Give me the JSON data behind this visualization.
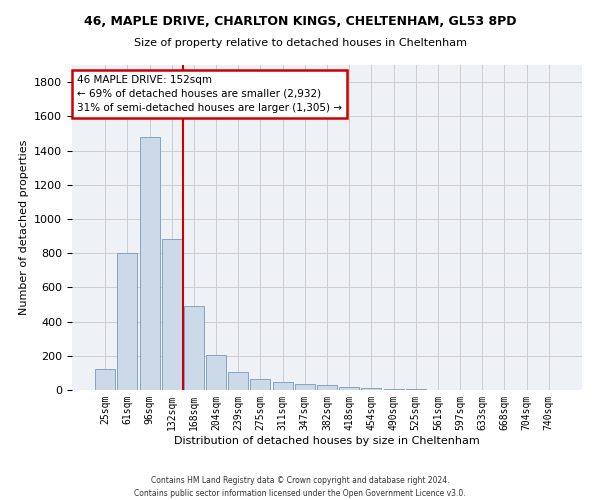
{
  "title_line1": "46, MAPLE DRIVE, CHARLTON KINGS, CHELTENHAM, GL53 8PD",
  "title_line2": "Size of property relative to detached houses in Cheltenham",
  "xlabel": "Distribution of detached houses by size in Cheltenham",
  "ylabel": "Number of detached properties",
  "footnote": "Contains HM Land Registry data © Crown copyright and database right 2024.\nContains public sector information licensed under the Open Government Licence v3.0.",
  "bar_labels": [
    "25sqm",
    "61sqm",
    "96sqm",
    "132sqm",
    "168sqm",
    "204sqm",
    "239sqm",
    "275sqm",
    "311sqm",
    "347sqm",
    "382sqm",
    "418sqm",
    "454sqm",
    "490sqm",
    "525sqm",
    "561sqm",
    "597sqm",
    "633sqm",
    "668sqm",
    "704sqm",
    "740sqm"
  ],
  "bar_values": [
    125,
    800,
    1480,
    880,
    490,
    205,
    103,
    65,
    45,
    35,
    27,
    20,
    12,
    5,
    3,
    2,
    1,
    1,
    0,
    0,
    0
  ],
  "bar_color": "#ccd9e8",
  "bar_edge_color": "#7799bb",
  "pct_smaller": 69,
  "n_smaller": 2932,
  "pct_larger_semi": 31,
  "n_larger_semi": 1305,
  "vline_color": "#cc0000",
  "annotation_box_color": "#cc0000",
  "ylim": [
    0,
    1900
  ],
  "yticks": [
    0,
    200,
    400,
    600,
    800,
    1000,
    1200,
    1400,
    1600,
    1800
  ],
  "grid_color": "#cccccc",
  "bg_color": "#eef2f7",
  "vline_x": 3.52
}
